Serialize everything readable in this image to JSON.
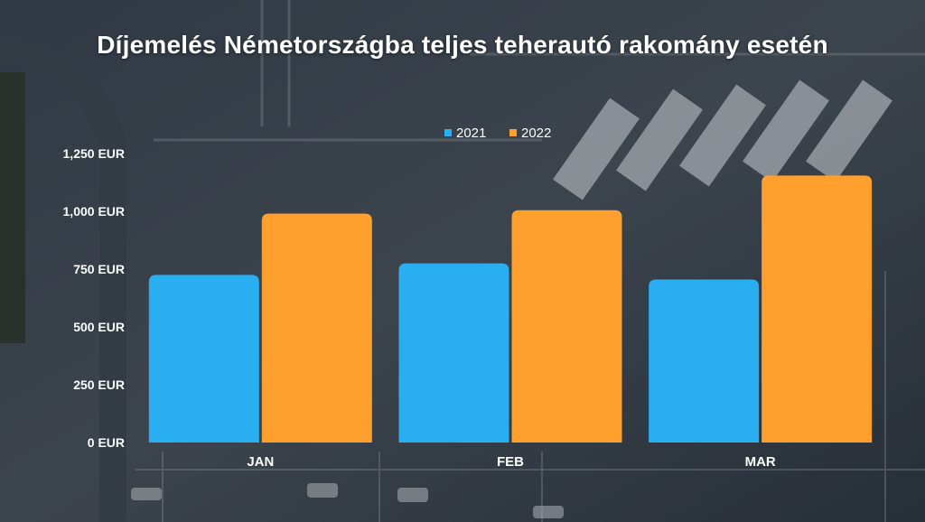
{
  "colors": {
    "series_2021": "#2aaef2",
    "series_2022": "#ff9f2e",
    "text": "#ffffff"
  },
  "background": {
    "description_icon": "aerial-truck-parking-photo"
  },
  "chart_data": {
    "type": "bar",
    "title": "Díjemelés Németországba teljes teherautó rakomány esetén",
    "xlabel": "",
    "ylabel": "",
    "categories": [
      "JAN",
      "FEB",
      "MAR"
    ],
    "series": [
      {
        "name": "2021",
        "values": [
          725,
          775,
          705
        ]
      },
      {
        "name": "2022",
        "values": [
          990,
          1005,
          1155
        ]
      }
    ],
    "ylim": [
      0,
      1250
    ],
    "yticks": [
      0,
      250,
      500,
      750,
      1000,
      1250
    ],
    "ytick_labels": [
      "0 EUR",
      "250 EUR",
      "500 EUR",
      "750 EUR",
      "1,000 EUR",
      "1,250 EUR"
    ],
    "legend_position": "top-center",
    "grid": false
  }
}
